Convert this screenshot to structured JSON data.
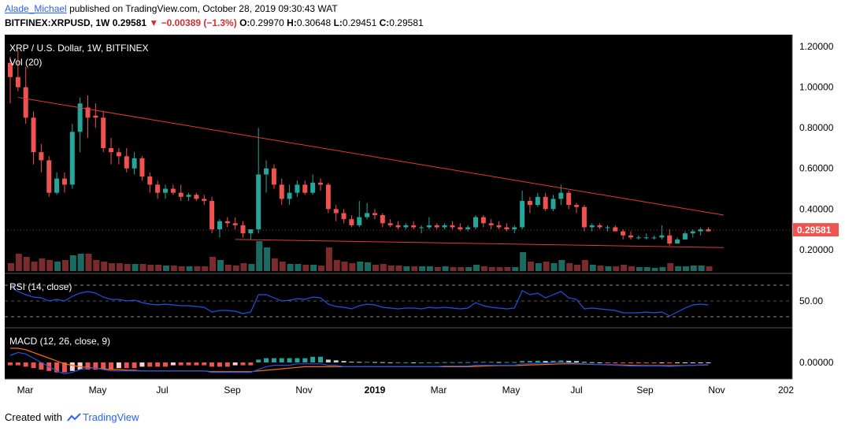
{
  "header": {
    "author": "Alade_Michael",
    "published_text": "published on TradingView.com, October 28, 2019 09:30:43 WAT",
    "symbol": "BITFINEX:XRPUSD, 1W",
    "last": "0.29581",
    "change": "−0.00389 (−1.3%)",
    "o_label": "O:",
    "o_value": "0.29970",
    "h_label": "H:",
    "h_value": "0.30648",
    "l_label": "L:",
    "l_value": "0.29451",
    "c_label": "C:",
    "c_value": "0.29581"
  },
  "footer": {
    "created_with": "Created with",
    "brand": "TradingView"
  },
  "chart_data": [
    {
      "type": "candlestick",
      "title": "XRP / U.S. Dollar, 1W, BITFINEX",
      "volume_label": "Vol (20)",
      "y_ticks": [
        "1.20000",
        "1.00000",
        "0.80000",
        "0.60000",
        "0.40000",
        "0.20000"
      ],
      "ylim": [
        0.11,
        1.22
      ],
      "last_price_label": "0.29581",
      "x_ticks": [
        "Mar",
        "May",
        "Jul",
        "Sep",
        "Nov",
        "2019",
        "Mar",
        "May",
        "Jul",
        "Sep",
        "Nov",
        "202"
      ],
      "candles_ohlc": [
        [
          1.12,
          1.15,
          0.92,
          1.05
        ],
        [
          1.05,
          1.18,
          0.98,
          1.0
        ],
        [
          1.0,
          1.1,
          0.82,
          0.85
        ],
        [
          0.85,
          0.88,
          0.62,
          0.68
        ],
        [
          0.68,
          0.72,
          0.58,
          0.64
        ],
        [
          0.64,
          0.66,
          0.46,
          0.48
        ],
        [
          0.48,
          0.58,
          0.47,
          0.55
        ],
        [
          0.55,
          0.58,
          0.48,
          0.52
        ],
        [
          0.52,
          0.82,
          0.5,
          0.78
        ],
        [
          0.78,
          0.95,
          0.68,
          0.92
        ],
        [
          0.9,
          0.96,
          0.75,
          0.85
        ],
        [
          0.86,
          0.92,
          0.8,
          0.85
        ],
        [
          0.85,
          0.88,
          0.68,
          0.7
        ],
        [
          0.7,
          0.75,
          0.62,
          0.68
        ],
        [
          0.68,
          0.7,
          0.62,
          0.66
        ],
        [
          0.66,
          0.7,
          0.58,
          0.6
        ],
        [
          0.6,
          0.68,
          0.57,
          0.65
        ],
        [
          0.65,
          0.66,
          0.54,
          0.56
        ],
        [
          0.56,
          0.58,
          0.48,
          0.52
        ],
        [
          0.52,
          0.54,
          0.45,
          0.48
        ],
        [
          0.48,
          0.52,
          0.45,
          0.5
        ],
        [
          0.5,
          0.52,
          0.47,
          0.48
        ],
        [
          0.48,
          0.52,
          0.44,
          0.46
        ],
        [
          0.46,
          0.48,
          0.44,
          0.47
        ],
        [
          0.47,
          0.48,
          0.44,
          0.45
        ],
        [
          0.45,
          0.47,
          0.42,
          0.44
        ],
        [
          0.44,
          0.46,
          0.28,
          0.3
        ],
        [
          0.3,
          0.35,
          0.26,
          0.34
        ],
        [
          0.34,
          0.36,
          0.31,
          0.33
        ],
        [
          0.33,
          0.36,
          0.3,
          0.32
        ],
        [
          0.32,
          0.34,
          0.26,
          0.28
        ],
        [
          0.28,
          0.3,
          0.25,
          0.3
        ],
        [
          0.3,
          0.8,
          0.28,
          0.57
        ],
        [
          0.57,
          0.64,
          0.48,
          0.6
        ],
        [
          0.6,
          0.62,
          0.5,
          0.52
        ],
        [
          0.52,
          0.55,
          0.42,
          0.45
        ],
        [
          0.45,
          0.52,
          0.42,
          0.48
        ],
        [
          0.48,
          0.54,
          0.46,
          0.52
        ],
        [
          0.52,
          0.54,
          0.47,
          0.48
        ],
        [
          0.48,
          0.57,
          0.47,
          0.53
        ],
        [
          0.53,
          0.55,
          0.49,
          0.52
        ],
        [
          0.52,
          0.53,
          0.38,
          0.4
        ],
        [
          0.4,
          0.42,
          0.34,
          0.38
        ],
        [
          0.38,
          0.4,
          0.33,
          0.35
        ],
        [
          0.35,
          0.37,
          0.31,
          0.32
        ],
        [
          0.32,
          0.44,
          0.31,
          0.36
        ],
        [
          0.36,
          0.43,
          0.35,
          0.38
        ],
        [
          0.38,
          0.4,
          0.35,
          0.37
        ],
        [
          0.37,
          0.38,
          0.31,
          0.33
        ],
        [
          0.33,
          0.35,
          0.31,
          0.32
        ],
        [
          0.32,
          0.34,
          0.3,
          0.31
        ],
        [
          0.31,
          0.33,
          0.3,
          0.32
        ],
        [
          0.32,
          0.34,
          0.3,
          0.31
        ],
        [
          0.31,
          0.32,
          0.28,
          0.31
        ],
        [
          0.31,
          0.36,
          0.3,
          0.32
        ],
        [
          0.32,
          0.33,
          0.3,
          0.31
        ],
        [
          0.31,
          0.33,
          0.3,
          0.32
        ],
        [
          0.32,
          0.34,
          0.3,
          0.31
        ],
        [
          0.31,
          0.33,
          0.29,
          0.3
        ],
        [
          0.3,
          0.32,
          0.29,
          0.31
        ],
        [
          0.31,
          0.37,
          0.3,
          0.36
        ],
        [
          0.36,
          0.37,
          0.31,
          0.33
        ],
        [
          0.33,
          0.35,
          0.3,
          0.32
        ],
        [
          0.32,
          0.34,
          0.3,
          0.31
        ],
        [
          0.31,
          0.33,
          0.29,
          0.3
        ],
        [
          0.3,
          0.32,
          0.28,
          0.31
        ],
        [
          0.31,
          0.49,
          0.3,
          0.44
        ],
        [
          0.44,
          0.46,
          0.38,
          0.42
        ],
        [
          0.42,
          0.48,
          0.41,
          0.46
        ],
        [
          0.46,
          0.48,
          0.39,
          0.4
        ],
        [
          0.4,
          0.47,
          0.39,
          0.45
        ],
        [
          0.45,
          0.52,
          0.42,
          0.48
        ],
        [
          0.48,
          0.49,
          0.4,
          0.42
        ],
        [
          0.42,
          0.43,
          0.38,
          0.41
        ],
        [
          0.41,
          0.42,
          0.29,
          0.31
        ],
        [
          0.31,
          0.33,
          0.29,
          0.32
        ],
        [
          0.32,
          0.33,
          0.3,
          0.31
        ],
        [
          0.31,
          0.32,
          0.29,
          0.31
        ],
        [
          0.31,
          0.32,
          0.29,
          0.29
        ],
        [
          0.29,
          0.3,
          0.25,
          0.27
        ],
        [
          0.27,
          0.29,
          0.25,
          0.26
        ],
        [
          0.26,
          0.27,
          0.25,
          0.26
        ],
        [
          0.26,
          0.28,
          0.25,
          0.26
        ],
        [
          0.26,
          0.27,
          0.25,
          0.26
        ],
        [
          0.26,
          0.32,
          0.25,
          0.27
        ],
        [
          0.27,
          0.3,
          0.22,
          0.23
        ],
        [
          0.23,
          0.26,
          0.23,
          0.25
        ],
        [
          0.25,
          0.29,
          0.25,
          0.28
        ],
        [
          0.28,
          0.3,
          0.26,
          0.29
        ],
        [
          0.29,
          0.31,
          0.27,
          0.3
        ],
        [
          0.3,
          0.31,
          0.29,
          0.29
        ]
      ],
      "volume": [
        10,
        22,
        18,
        12,
        16,
        14,
        12,
        14,
        20,
        22,
        22,
        14,
        12,
        10,
        10,
        9,
        9,
        9,
        8,
        8,
        7,
        7,
        6,
        6,
        6,
        6,
        18,
        14,
        8,
        7,
        10,
        9,
        38,
        30,
        16,
        12,
        9,
        9,
        8,
        8,
        7,
        30,
        14,
        12,
        10,
        12,
        11,
        8,
        9,
        7,
        7,
        6,
        6,
        6,
        6,
        5,
        6,
        5,
        5,
        5,
        8,
        6,
        5,
        5,
        5,
        5,
        24,
        12,
        10,
        12,
        10,
        14,
        10,
        8,
        14,
        8,
        7,
        6,
        6,
        8,
        6,
        5,
        5,
        4,
        5,
        10,
        6,
        6,
        7,
        7,
        6
      ],
      "trendlines": [
        {
          "from": [
            1,
            0.95
          ],
          "to": [
            92,
            0.37
          ]
        },
        {
          "from": [
            29,
            0.25
          ],
          "to": [
            92,
            0.21
          ]
        }
      ],
      "line_color_up": "#26a69a",
      "line_color_down": "#ef5350",
      "trend_color": "#e53935"
    },
    {
      "type": "line",
      "title": "RSI (14, close)",
      "y_ticks": [
        "50.00"
      ],
      "levels": [
        70,
        50,
        30
      ],
      "ylim": [
        20,
        80
      ],
      "values": [
        68,
        62,
        58,
        55,
        54,
        50,
        52,
        50,
        56,
        60,
        62,
        60,
        55,
        52,
        52,
        50,
        51,
        48,
        46,
        45,
        46,
        45,
        44,
        44,
        43,
        42,
        36,
        38,
        38,
        37,
        34,
        36,
        58,
        58,
        54,
        50,
        51,
        53,
        52,
        55,
        54,
        46,
        43,
        42,
        40,
        44,
        46,
        45,
        42,
        41,
        40,
        41,
        41,
        40,
        42,
        41,
        42,
        41,
        40,
        41,
        48,
        44,
        42,
        41,
        40,
        41,
        63,
        58,
        60,
        54,
        58,
        62,
        54,
        52,
        40,
        41,
        40,
        39,
        38,
        35,
        35,
        35,
        36,
        35,
        36,
        31,
        36,
        41,
        45,
        46,
        45
      ],
      "color": "#1e53e5"
    },
    {
      "type": "macd",
      "title": "MACD (12, 26, close, 9)",
      "y_ticks": [
        "0.00000"
      ],
      "histogram": [
        -0.02,
        -0.02,
        -0.03,
        -0.04,
        -0.05,
        -0.06,
        -0.07,
        -0.07,
        -0.06,
        -0.05,
        -0.05,
        -0.05,
        -0.05,
        -0.05,
        -0.04,
        -0.04,
        -0.04,
        -0.03,
        -0.03,
        -0.03,
        -0.03,
        -0.02,
        -0.02,
        -0.02,
        -0.02,
        -0.02,
        -0.03,
        -0.03,
        -0.03,
        -0.02,
        -0.02,
        -0.02,
        0.02,
        0.03,
        0.03,
        0.03,
        0.03,
        0.03,
        0.03,
        0.04,
        0.04,
        0.02,
        0.015,
        0.01,
        0.005,
        0.004,
        0.004,
        0.003,
        0.002,
        0.001,
        0.001,
        0.001,
        0.0,
        0.0,
        0.001,
        0.001,
        0.002,
        0.002,
        0.002,
        0.002,
        0.004,
        0.004,
        0.004,
        0.003,
        0.003,
        0.003,
        0.01,
        0.01,
        0.012,
        0.01,
        0.012,
        0.014,
        0.012,
        0.01,
        0.004,
        0.002,
        0.0,
        -0.002,
        -0.003,
        -0.004,
        -0.004,
        -0.005,
        -0.005,
        -0.005,
        -0.004,
        -0.006,
        -0.005,
        -0.004,
        -0.003,
        -0.002,
        -0.001
      ],
      "macd_line": [
        0.05,
        0.07,
        0.06,
        0.03,
        0.0,
        -0.03,
        -0.06,
        -0.08,
        -0.07,
        -0.05,
        -0.04,
        -0.04,
        -0.05,
        -0.06,
        -0.06,
        -0.06,
        -0.06,
        -0.06,
        -0.06,
        -0.06,
        -0.06,
        -0.06,
        -0.06,
        -0.06,
        -0.06,
        -0.06,
        -0.07,
        -0.07,
        -0.07,
        -0.07,
        -0.07,
        -0.07,
        -0.05,
        -0.03,
        -0.02,
        -0.02,
        -0.02,
        -0.01,
        -0.01,
        -0.01,
        -0.01,
        -0.02,
        -0.02,
        -0.03,
        -0.03,
        -0.03,
        -0.03,
        -0.03,
        -0.03,
        -0.03,
        -0.03,
        -0.03,
        -0.03,
        -0.03,
        -0.03,
        -0.03,
        -0.025,
        -0.025,
        -0.025,
        -0.025,
        -0.02,
        -0.02,
        -0.02,
        -0.02,
        -0.02,
        -0.02,
        -0.01,
        -0.01,
        -0.005,
        -0.005,
        0.0,
        0.0,
        -0.002,
        -0.005,
        -0.01,
        -0.012,
        -0.015,
        -0.017,
        -0.02,
        -0.022,
        -0.025,
        -0.025,
        -0.025,
        -0.025,
        -0.025,
        -0.028,
        -0.025,
        -0.022,
        -0.02,
        -0.018,
        -0.016
      ],
      "signal_line": [
        0.1,
        0.1,
        0.09,
        0.07,
        0.05,
        0.03,
        0.01,
        -0.01,
        -0.02,
        -0.03,
        -0.035,
        -0.04,
        -0.045,
        -0.05,
        -0.05,
        -0.055,
        -0.055,
        -0.06,
        -0.06,
        -0.06,
        -0.06,
        -0.06,
        -0.06,
        -0.06,
        -0.06,
        -0.06,
        -0.065,
        -0.065,
        -0.065,
        -0.065,
        -0.065,
        -0.065,
        -0.06,
        -0.055,
        -0.05,
        -0.045,
        -0.04,
        -0.035,
        -0.03,
        -0.03,
        -0.03,
        -0.03,
        -0.03,
        -0.03,
        -0.03,
        -0.03,
        -0.03,
        -0.03,
        -0.03,
        -0.03,
        -0.03,
        -0.03,
        -0.03,
        -0.03,
        -0.03,
        -0.03,
        -0.03,
        -0.03,
        -0.03,
        -0.03,
        -0.028,
        -0.026,
        -0.024,
        -0.022,
        -0.022,
        -0.022,
        -0.02,
        -0.018,
        -0.016,
        -0.014,
        -0.012,
        -0.01,
        -0.01,
        -0.01,
        -0.012,
        -0.014,
        -0.015,
        -0.016,
        -0.017,
        -0.018,
        -0.02,
        -0.021,
        -0.022,
        -0.022,
        -0.022,
        -0.023,
        -0.022,
        -0.021,
        -0.02,
        -0.019,
        -0.018
      ],
      "macd_color": "#1e53e5",
      "signal_color": "#ff6d00"
    }
  ]
}
